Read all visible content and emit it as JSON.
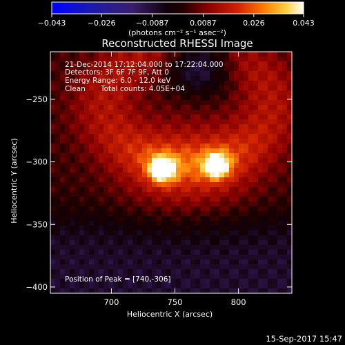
{
  "chart_data": {
    "type": "heatmap",
    "title": "Reconstructed RHESSI Image",
    "xlabel": "Heliocentric X (arcsec)",
    "ylabel": "Heliocentric Y (arcsec)",
    "xlim": [
      652,
      842
    ],
    "ylim": [
      -405,
      -212
    ],
    "x_ticks": [
      700,
      750,
      800
    ],
    "x_tick_labels": [
      "700",
      "750",
      "800"
    ],
    "y_ticks": [
      -400,
      -350,
      -300,
      -250
    ],
    "y_tick_labels": [
      "−400",
      "−350",
      "−300",
      "−250"
    ],
    "grid": false,
    "colorbar": {
      "range": [
        -0.043,
        0.043
      ],
      "ticks": [
        -0.043,
        -0.026,
        -0.0087,
        0.0087,
        0.026,
        0.043
      ],
      "tick_labels": [
        "−0.043",
        "−0.026",
        "−0.0087",
        "0.0087",
        "0.026",
        "0.043"
      ],
      "units_label": "(photons cm⁻² s⁻¹ asec⁻²)",
      "colormap": [
        "#0000ff",
        "#1010c0",
        "#3a1f80",
        "#000000",
        "#700000",
        "#c82000",
        "#ff6a00",
        "#ffc840",
        "#ffffff"
      ]
    },
    "sources": [
      {
        "x": 740,
        "y": -306,
        "peak": 0.043,
        "sigma": 7
      },
      {
        "x": 783,
        "y": -303,
        "peak": 0.039,
        "sigma": 7
      }
    ],
    "annotations": {
      "time": "21-Dec-2014 17:12:04.000 to 17:22:04.000",
      "detectors": "Detectors: 3F 6F 7F 9F, Att 0",
      "energy": "Energy Range: 6.0 - 12.0 keV",
      "method": "Clean",
      "counts": "Total counts: 4.05E+04",
      "peak": "Position of Peak = [740,-306]"
    }
  },
  "footer_date": "15-Sep-2017 15:47"
}
